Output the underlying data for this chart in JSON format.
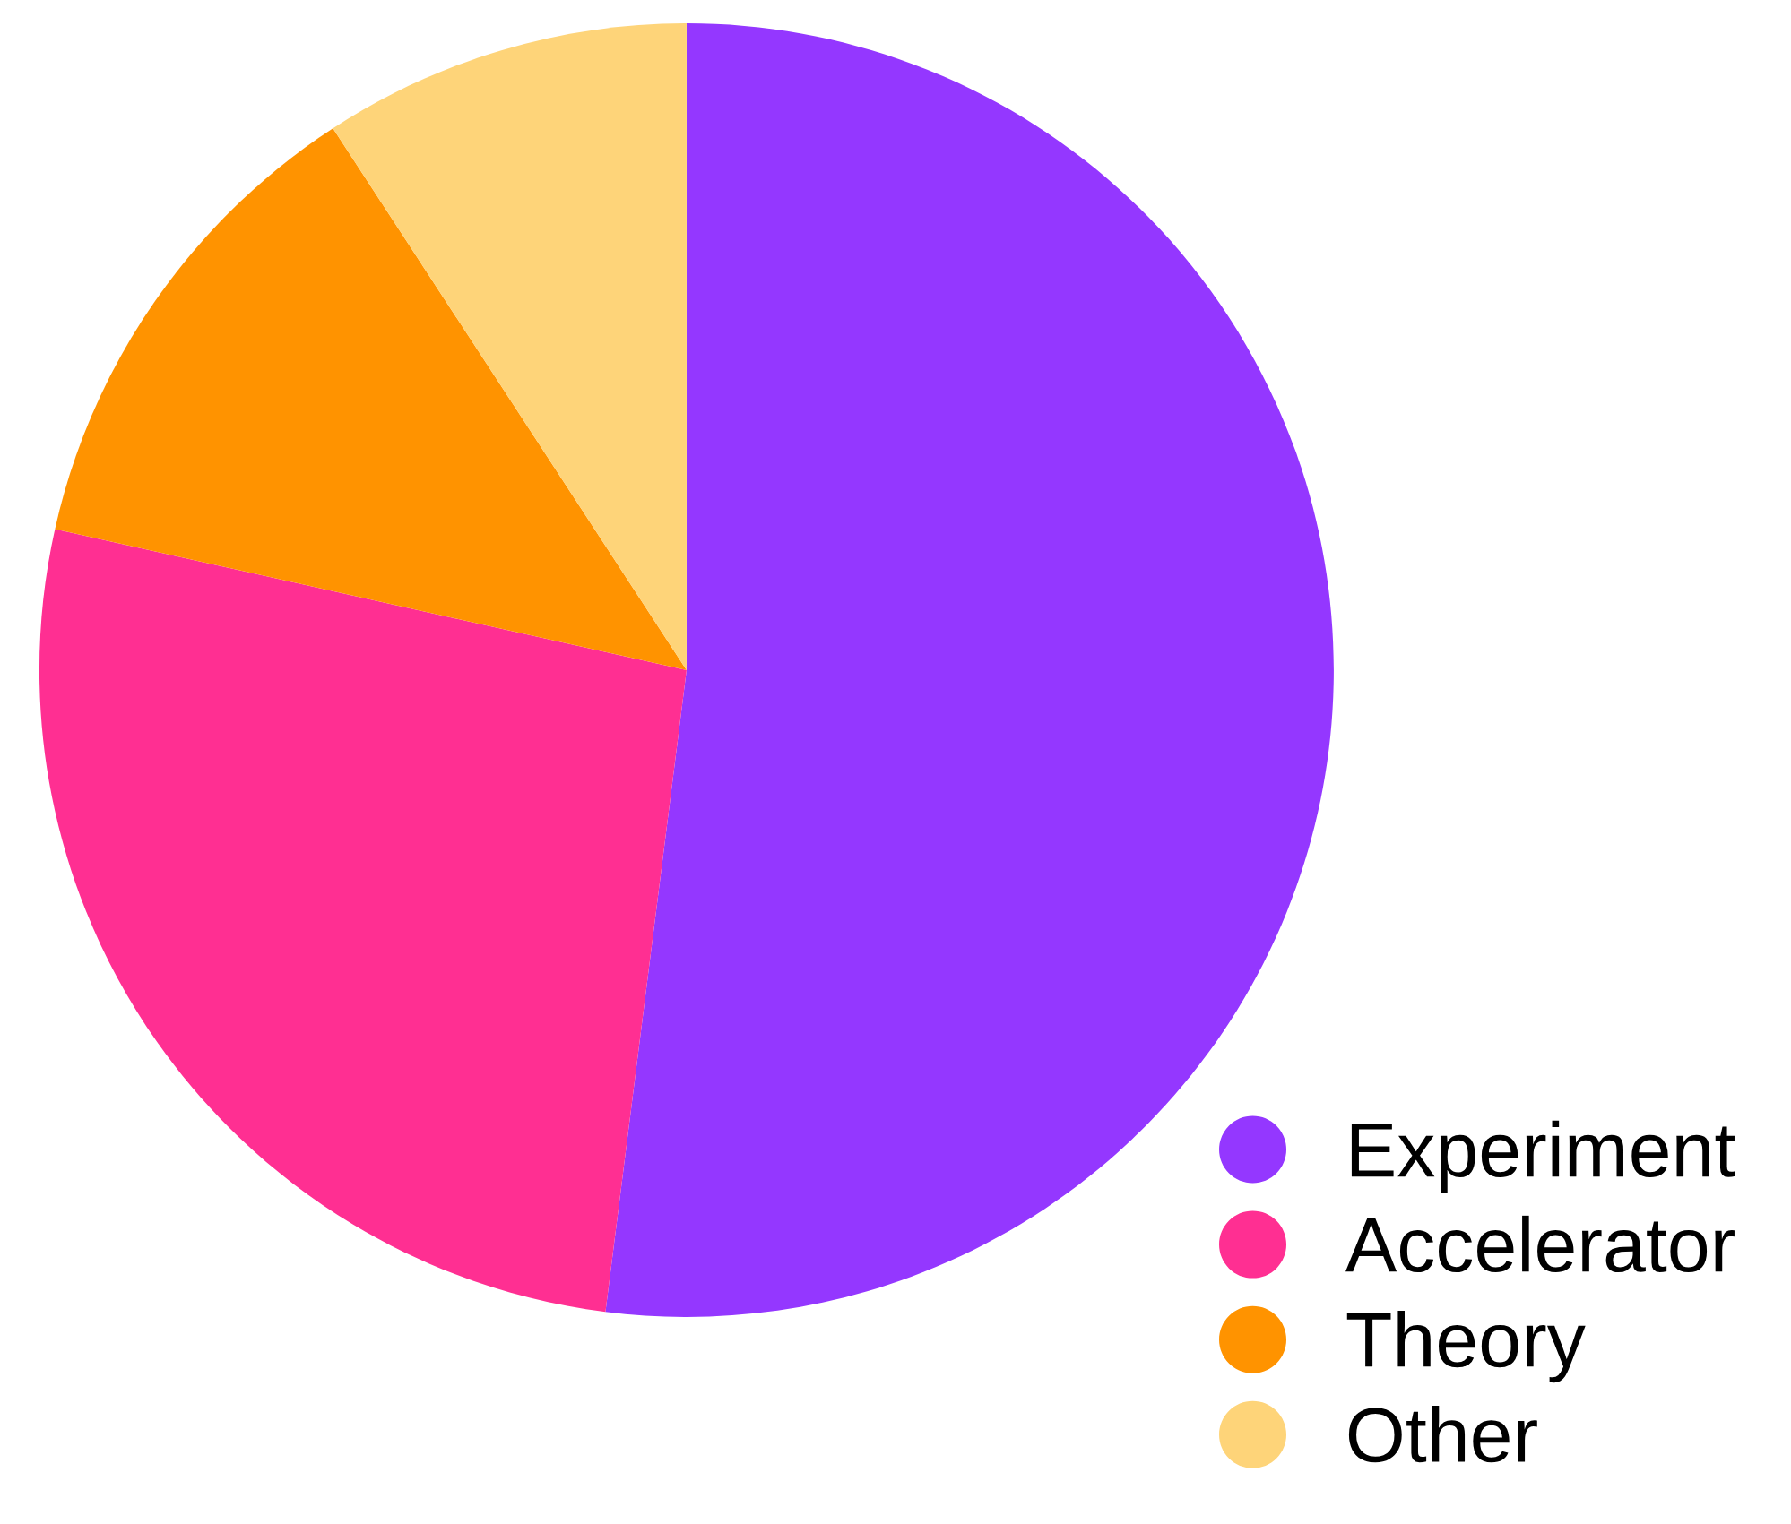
{
  "chart_data": {
    "type": "pie",
    "categories": [
      "Experiment",
      "Accelerator",
      "Theory",
      "Other"
    ],
    "values": [
      52,
      26.5,
      12.3,
      9.2
    ],
    "colors": [
      "#9437ff",
      "#ff2f92",
      "#ff9300",
      "#fed479"
    ],
    "legend": "bottom right"
  }
}
